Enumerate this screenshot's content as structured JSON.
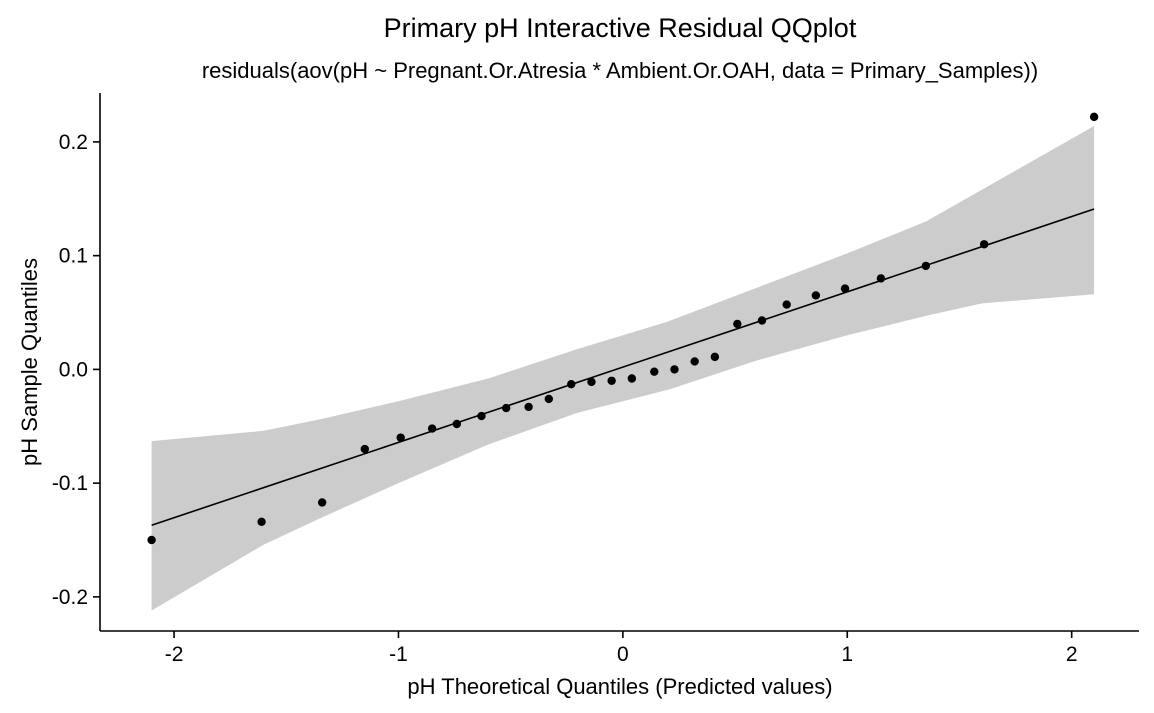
{
  "chart_data": {
    "type": "scatter",
    "title": "Primary pH Interactive Residual QQplot",
    "subtitle": "residuals(aov(pH ~ Pregnant.Or.Atresia * Ambient.Or.OAH, data = Primary_Samples))",
    "xlabel": "pH Theoretical Quantiles (Predicted values)",
    "ylabel": "pH Sample Quantiles",
    "xlim": [
      -2.33,
      2.3
    ],
    "ylim": [
      -0.23,
      0.243
    ],
    "x_ticks": [
      -2,
      -1,
      0,
      1,
      2
    ],
    "x_tick_labels": [
      "-2",
      "-1",
      "0",
      "1",
      "2"
    ],
    "y_ticks": [
      -0.2,
      -0.1,
      0.0,
      0.1,
      0.2
    ],
    "y_tick_labels": [
      "-0.2",
      "-0.1",
      "0.0",
      "0.1",
      "0.2"
    ],
    "grid": false,
    "legend": "none",
    "colors": {
      "points": "#000000",
      "reference_line": "#000000",
      "confidence_band": "#cccccc"
    },
    "points": [
      {
        "x": -2.1,
        "y": -0.15
      },
      {
        "x": -1.61,
        "y": -0.134
      },
      {
        "x": -1.34,
        "y": -0.117
      },
      {
        "x": -1.15,
        "y": -0.07
      },
      {
        "x": -0.99,
        "y": -0.06
      },
      {
        "x": -0.85,
        "y": -0.052
      },
      {
        "x": -0.74,
        "y": -0.048
      },
      {
        "x": -0.63,
        "y": -0.041
      },
      {
        "x": -0.52,
        "y": -0.034
      },
      {
        "x": -0.42,
        "y": -0.033
      },
      {
        "x": -0.33,
        "y": -0.026
      },
      {
        "x": -0.23,
        "y": -0.013
      },
      {
        "x": -0.14,
        "y": -0.011
      },
      {
        "x": -0.05,
        "y": -0.01
      },
      {
        "x": 0.04,
        "y": -0.008
      },
      {
        "x": 0.14,
        "y": -0.002
      },
      {
        "x": 0.23,
        "y": 0.0
      },
      {
        "x": 0.32,
        "y": 0.007
      },
      {
        "x": 0.41,
        "y": 0.011
      },
      {
        "x": 0.51,
        "y": 0.04
      },
      {
        "x": 0.62,
        "y": 0.043
      },
      {
        "x": 0.73,
        "y": 0.057
      },
      {
        "x": 0.86,
        "y": 0.065
      },
      {
        "x": 0.99,
        "y": 0.071
      },
      {
        "x": 1.15,
        "y": 0.08
      },
      {
        "x": 1.35,
        "y": 0.091
      },
      {
        "x": 1.61,
        "y": 0.11
      },
      {
        "x": 2.1,
        "y": 0.222
      }
    ],
    "reference_line": {
      "x": [
        -2.1,
        2.1
      ],
      "y": [
        -0.137,
        0.141
      ]
    },
    "confidence_band": {
      "x": [
        -2.1,
        -1.6,
        -1.35,
        -1.0,
        -0.6,
        -0.2,
        0.0,
        0.2,
        0.6,
        1.0,
        1.35,
        1.6,
        2.1
      ],
      "lower": [
        -0.212,
        -0.154,
        -0.131,
        -0.1,
        -0.066,
        -0.038,
        -0.028,
        -0.018,
        0.008,
        0.03,
        0.047,
        0.058,
        0.066
      ],
      "upper": [
        -0.063,
        -0.054,
        -0.044,
        -0.028,
        -0.008,
        0.018,
        0.03,
        0.042,
        0.072,
        0.102,
        0.13,
        0.158,
        0.214
      ]
    }
  }
}
